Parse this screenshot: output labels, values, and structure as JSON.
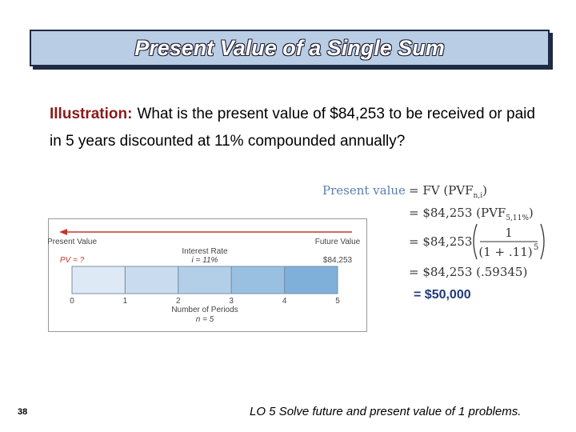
{
  "header": {
    "title": "Present Value of a Single Sum"
  },
  "illustration": {
    "label": "Illustration:",
    "text": "What is the present value of $84,253 to be received or paid in 5 years discounted at 11% compounded annually?"
  },
  "formula": {
    "lhs": "Present value",
    "line1": {
      "main": "= FV (PVF",
      "sub": "n,i",
      "end": ")"
    },
    "line2": {
      "main": "= $84,253 (PVF",
      "sub": "5,11%",
      "end": ")"
    },
    "line3": {
      "main": "= $84,253",
      "numerator": "1",
      "denominator": "(1 + .11)",
      "exponent": "5"
    },
    "line4": "= $84,253 (.59345)",
    "result": "= $50,000"
  },
  "timeline": {
    "left_label": "Present Value",
    "left_value": "PV = ?",
    "middle_label": "Interest Rate",
    "middle_value": "i = 11%",
    "right_label": "Future Value",
    "right_value": "$84,253",
    "periods": [
      "0",
      "1",
      "2",
      "3",
      "4",
      "5"
    ],
    "axis_label": "Number of Periods",
    "n_label": "n = 5"
  },
  "footer": {
    "page": "38",
    "objective": "LO 5  Solve future and present value of 1 problems."
  }
}
